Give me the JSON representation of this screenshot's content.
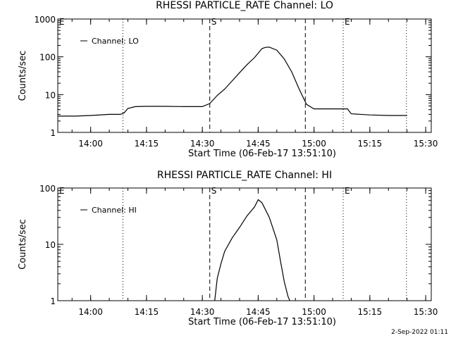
{
  "footer": {
    "timestamp": "2-Sep-2022 01:11"
  },
  "chart_data": [
    {
      "type": "line",
      "title": "RHESSI PARTICLE_RATE Channel: LO",
      "xlabel": "Start Time (06-Feb-17 13:51:10)",
      "ylabel": "Counts/sec",
      "yscale": "log",
      "xlim": [
        "13:51:10",
        "15:31:30"
      ],
      "ylim": [
        1,
        1000
      ],
      "x_ticks": [
        "14:00",
        "14:15",
        "14:30",
        "14:45",
        "15:00",
        "15:15",
        "15:30"
      ],
      "y_ticks": [
        "1",
        "10",
        "100",
        "1000"
      ],
      "grid": false,
      "legend_position": "top-left",
      "series": [
        {
          "name": "Channel: LO",
          "x": [
            "13:51:10",
            "13:56",
            "14:00",
            "14:05",
            "14:08",
            "14:09",
            "14:10",
            "14:12",
            "14:15",
            "14:20",
            "14:25",
            "14:30",
            "14:32",
            "14:34",
            "14:36",
            "14:38",
            "14:40",
            "14:42",
            "14:44",
            "14:46",
            "14:47",
            "14:48",
            "14:50",
            "14:52",
            "14:54",
            "14:56",
            "14:58",
            "15:00",
            "15:05",
            "15:08",
            "15:09",
            "15:10",
            "15:15",
            "15:20",
            "15:25"
          ],
          "values": [
            2.7,
            2.7,
            2.8,
            3.0,
            3.0,
            3.3,
            4.3,
            4.8,
            4.9,
            4.9,
            4.8,
            4.8,
            5.8,
            9.5,
            14,
            23,
            38,
            62,
            95,
            165,
            178,
            180,
            150,
            88,
            40,
            14,
            5.5,
            4.2,
            4.2,
            4.2,
            4.2,
            3.1,
            2.9,
            2.8,
            2.8
          ]
        }
      ],
      "annotations": [
        {
          "x": "14:32:00",
          "style": "dashed",
          "label": "S"
        },
        {
          "x": "14:57:40",
          "style": "dashed",
          "label": ""
        },
        {
          "x": "14:08:40",
          "style": "dotted",
          "label": ""
        },
        {
          "x": "15:07:50",
          "style": "dotted",
          "label": "E"
        },
        {
          "x": "15:24:50",
          "style": "dotted",
          "label": ""
        },
        {
          "x": "13:51:10",
          "style": "none",
          "label": "E"
        }
      ]
    },
    {
      "type": "line",
      "title": "RHESSI PARTICLE_RATE Channel: HI",
      "xlabel": "Start Time (06-Feb-17 13:51:10)",
      "ylabel": "Counts/sec",
      "yscale": "log",
      "xlim": [
        "13:51:10",
        "15:31:30"
      ],
      "ylim": [
        1,
        100
      ],
      "x_ticks": [
        "14:00",
        "14:15",
        "14:30",
        "14:45",
        "15:00",
        "15:15",
        "15:30"
      ],
      "y_ticks": [
        "1",
        "10",
        "100"
      ],
      "grid": false,
      "legend_position": "top-left",
      "series": [
        {
          "name": "Channel: HI",
          "x": [
            "14:33:20",
            "14:34",
            "14:35",
            "14:36",
            "14:38",
            "14:40",
            "14:42",
            "14:44",
            "14:45",
            "14:46",
            "14:48",
            "14:50",
            "14:51",
            "14:52",
            "14:53",
            "14:53:30"
          ],
          "values": [
            1.0,
            2.5,
            4.5,
            7.5,
            13,
            20,
            32,
            46,
            62,
            55,
            30,
            12,
            5,
            2.2,
            1.2,
            1.0
          ]
        }
      ],
      "annotations": [
        {
          "x": "14:32:00",
          "style": "dashed",
          "label": "S"
        },
        {
          "x": "14:57:40",
          "style": "dashed",
          "label": ""
        },
        {
          "x": "14:08:40",
          "style": "dotted",
          "label": ""
        },
        {
          "x": "15:07:50",
          "style": "dotted",
          "label": "E"
        },
        {
          "x": "15:24:50",
          "style": "dotted",
          "label": ""
        },
        {
          "x": "13:51:10",
          "style": "none",
          "label": "E"
        }
      ]
    }
  ]
}
